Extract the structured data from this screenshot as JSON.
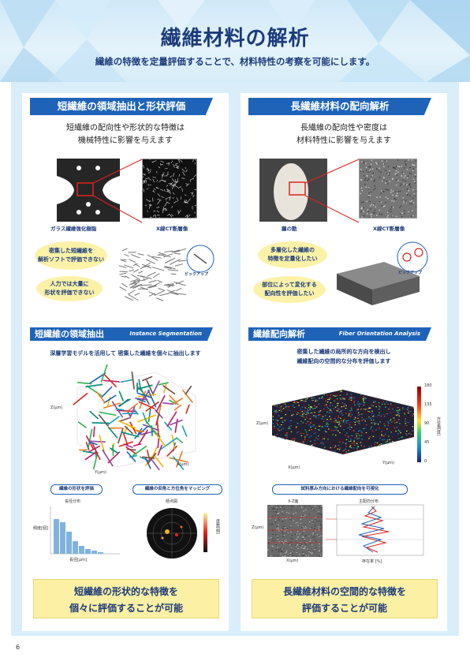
{
  "header": {
    "title": "繊維材料の解析",
    "subtitle": "繊維の特徴を定量評価することで、材料特性の考察を可能にします。"
  },
  "left": {
    "heading": "短繊維の領域抽出と形状評価",
    "intro_line1": "短繊維の配向性や形状的な特徴は",
    "intro_line2": "機械特性に影響を与えます",
    "photo_caption": "ガラス繊維強化樹脂",
    "ct_caption": "X線CT断層像",
    "bubble1_line1": "密集した短繊維を",
    "bubble1_line2": "解析ソフトで評価できない",
    "bubble2_line1": "人力では大量に",
    "bubble2_line2": "形状を評価できない",
    "pickup": "ピックアップ",
    "section_title": "短繊維の領域抽出",
    "section_en": "Instance Segmentation",
    "section_desc": "深層学習モデルを活用して 密集した繊維を個々に抽出します",
    "axis_z": "Z(μm)",
    "axis_y": "Y(μm)",
    "axis_x": "X(μm)",
    "pill1": "繊維の形状を評価",
    "pill2": "繊維の仰角と方位角をマッピング",
    "hist_title": "長径分布",
    "hist_ylabel": "頻度[個]",
    "hist_xlabel": "長径[μm]",
    "polar_title": "極点図",
    "polar_scale": "度数[個]",
    "conclusion_line1": "短繊維の形状的な特徴を",
    "conclusion_line2": "個々に評価することが可能"
  },
  "right": {
    "heading": "長繊維材料の配向解析",
    "intro_line1": "長繊維の配向性や密度は",
    "intro_line2": "材料特性に影響を与えます",
    "photo_caption": "繭の動",
    "ct_caption": "X線CT断層像",
    "bubble1_line1": "多層化した繊維の",
    "bubble1_line2": "特徴を定量化したい",
    "bubble2_line1": "部位によって変化する",
    "bubble2_line2": "配向性を評価したい",
    "pickup": "ピックアップ",
    "section_title": "繊維配向解析",
    "section_en": "Fiber Orientation Analysis",
    "section_desc_line1": "密集した繊維の局所的な方向を検出し",
    "section_desc_line2": "繊維配向の空間的な分布を評価します",
    "colorbar_ticks": [
      "180",
      "135",
      "90",
      "45",
      "0"
    ],
    "colorbar_label": "方位角[度]",
    "axis_z": "Z(μm)",
    "axis_x": "X(μm)",
    "axis_y": "Y(μm)",
    "pill1": "試料厚み方向における繊維配向を可視化",
    "xz_title": "X-Z面",
    "dist_title": "主配向分布",
    "dist_xlabel": "存在率 [%]",
    "xz_xlabel": "X(μm)",
    "xz_ylabel": "Z(μm)",
    "conclusion_line1": "長繊維材料の空間的な特徴を",
    "conclusion_line2": "評価することが可能"
  },
  "page_number": "6",
  "colors": {
    "brand": "#1e63b8",
    "highlight": "#fbf0a3",
    "frame": "#d9eef9",
    "callout": "#e0231b"
  }
}
